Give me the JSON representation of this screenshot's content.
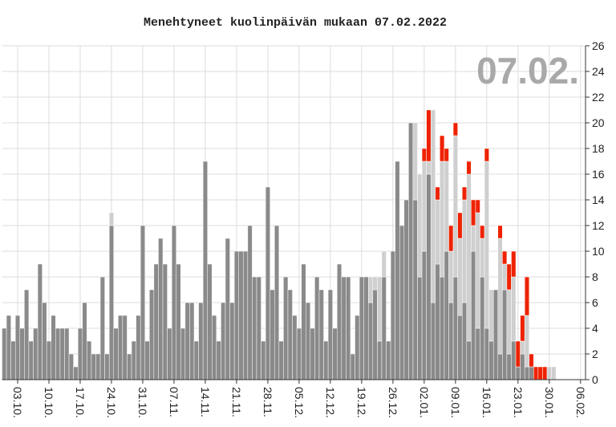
{
  "chart_data": {
    "type": "stacked_bar",
    "title": "Menehtyneet kuolinpäivän mukaan 07.02.2022",
    "watermark": "07.02.",
    "categories": [
      null,
      null,
      null,
      "03.10.",
      null,
      null,
      null,
      null,
      null,
      null,
      "10.10.",
      null,
      null,
      null,
      null,
      null,
      null,
      "17.10.",
      null,
      null,
      null,
      null,
      null,
      null,
      "24.10.",
      null,
      null,
      null,
      null,
      null,
      null,
      "31.10.",
      null,
      null,
      null,
      null,
      null,
      null,
      "07.11.",
      null,
      null,
      null,
      null,
      null,
      null,
      "14.11.",
      null,
      null,
      null,
      null,
      null,
      null,
      "21.11.",
      null,
      null,
      null,
      null,
      null,
      null,
      "28.11.",
      null,
      null,
      null,
      null,
      null,
      null,
      "05.12.",
      null,
      null,
      null,
      null,
      null,
      null,
      "12.12.",
      null,
      null,
      null,
      null,
      null,
      null,
      "19.12.",
      null,
      null,
      null,
      null,
      null,
      null,
      "26.12.",
      null,
      null,
      null,
      null,
      null,
      null,
      "02.01.",
      null,
      null,
      null,
      null,
      null,
      null,
      "09.01.",
      null,
      null,
      null,
      null,
      null,
      null,
      "16.01.",
      null,
      null,
      null,
      null,
      null,
      null,
      "23.01.",
      null,
      null,
      null,
      null,
      null,
      null,
      "30.01.",
      null,
      null,
      null,
      null,
      null,
      null,
      "06.02."
    ],
    "series": [
      {
        "color": "#8a8a8a",
        "values": [
          4,
          5,
          3,
          5,
          4,
          7,
          3,
          4,
          9,
          6,
          3,
          5,
          4,
          4,
          4,
          2,
          1,
          4,
          6,
          3,
          2,
          2,
          8,
          2,
          12,
          4,
          5,
          5,
          2,
          3,
          5,
          12,
          3,
          7,
          9,
          11,
          9,
          4,
          12,
          9,
          4,
          6,
          6,
          3,
          6,
          17,
          9,
          5,
          3,
          6,
          11,
          6,
          10,
          10,
          10,
          12,
          8,
          8,
          3,
          15,
          7,
          12,
          3,
          8,
          7,
          5,
          4,
          9,
          6,
          4,
          8,
          7,
          3,
          7,
          4,
          9,
          8,
          8,
          2,
          5,
          8,
          8,
          6,
          7,
          3,
          8,
          3,
          10,
          17,
          12,
          14,
          20,
          14,
          8,
          10,
          16,
          6,
          9,
          8,
          10,
          6,
          8,
          5,
          6,
          3,
          10,
          4,
          8,
          4,
          3,
          7,
          2,
          7,
          2,
          3,
          1,
          2,
          1,
          1,
          0,
          0,
          0,
          0,
          0,
          0,
          0,
          0,
          0,
          0,
          0
        ]
      },
      {
        "color": "#cfcfcf",
        "values": [
          0,
          0,
          0,
          0,
          0,
          0,
          0,
          0,
          0,
          0,
          0,
          0,
          0,
          0,
          0,
          0,
          0,
          0,
          0,
          0,
          0,
          0,
          0,
          0,
          1,
          0,
          0,
          0,
          0,
          0,
          0,
          0,
          0,
          0,
          0,
          0,
          0,
          0,
          0,
          0,
          0,
          0,
          0,
          0,
          0,
          0,
          0,
          0,
          0,
          0,
          0,
          0,
          0,
          0,
          0,
          0,
          0,
          0,
          0,
          0,
          0,
          0,
          0,
          0,
          0,
          0,
          0,
          0,
          0,
          0,
          0,
          0,
          0,
          0,
          0,
          0,
          0,
          0,
          0,
          0,
          0,
          0,
          2,
          1,
          5,
          2,
          0,
          0,
          0,
          0,
          0,
          0,
          6,
          8,
          7,
          1,
          15,
          5,
          9,
          7,
          4,
          11,
          6,
          8,
          13,
          2,
          9,
          3,
          13,
          4,
          0,
          9,
          2,
          5,
          5,
          0,
          1,
          4,
          0,
          0,
          0,
          0,
          1,
          1,
          0,
          0,
          0,
          0,
          0,
          0
        ]
      },
      {
        "color": "#ee2200",
        "values": [
          0,
          0,
          0,
          0,
          0,
          0,
          0,
          0,
          0,
          0,
          0,
          0,
          0,
          0,
          0,
          0,
          0,
          0,
          0,
          0,
          0,
          0,
          0,
          0,
          0,
          0,
          0,
          0,
          0,
          0,
          0,
          0,
          0,
          0,
          0,
          0,
          0,
          0,
          0,
          0,
          0,
          0,
          0,
          0,
          0,
          0,
          0,
          0,
          0,
          0,
          0,
          0,
          0,
          0,
          0,
          0,
          0,
          0,
          0,
          0,
          0,
          0,
          0,
          0,
          0,
          0,
          0,
          0,
          0,
          0,
          0,
          0,
          0,
          0,
          0,
          0,
          0,
          0,
          0,
          0,
          0,
          0,
          0,
          0,
          0,
          0,
          0,
          0,
          0,
          0,
          0,
          0,
          0,
          0,
          1,
          4,
          0,
          1,
          2,
          1,
          2,
          1,
          2,
          1,
          1,
          2,
          1,
          1,
          1,
          0,
          0,
          1,
          1,
          2,
          2,
          2,
          2,
          3,
          1,
          1,
          1,
          1,
          0,
          0,
          0,
          0,
          0,
          0,
          0,
          0
        ]
      }
    ],
    "ylim": [
      0,
      26
    ],
    "yticks": [
      0,
      2,
      4,
      6,
      8,
      10,
      12,
      14,
      16,
      18,
      20,
      22,
      24,
      26
    ],
    "grid": true,
    "y_axis_side": "right"
  }
}
